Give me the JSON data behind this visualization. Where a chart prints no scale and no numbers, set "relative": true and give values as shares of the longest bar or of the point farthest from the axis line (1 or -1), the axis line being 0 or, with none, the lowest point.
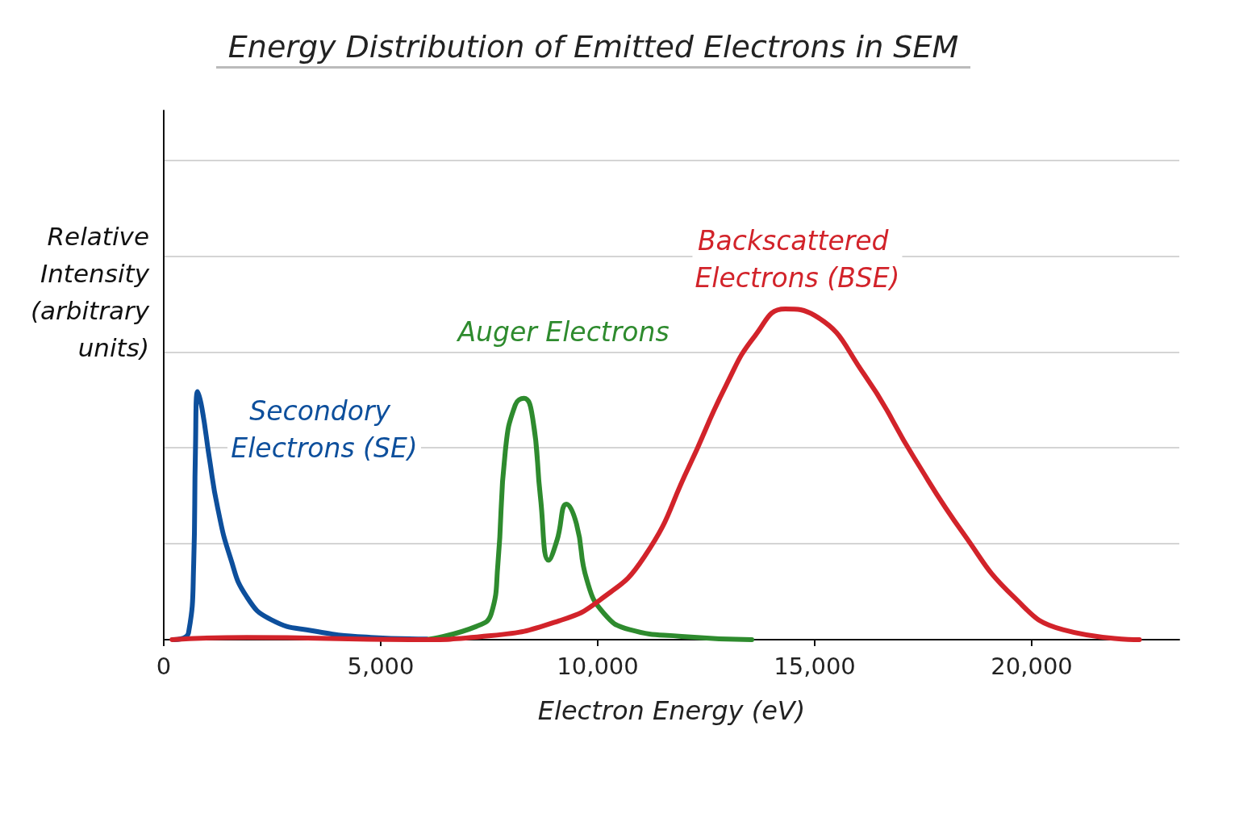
{
  "chart_data": {
    "type": "line",
    "title": "Energy Distribution of Emitted Electrons in SEM",
    "xlabel": "Electron Energy (eV)",
    "ylabel": "Relative Intensity (arbitrary units)",
    "relative": true,
    "grid": "y",
    "marker": "none",
    "line_style": "solid",
    "xlim": [
      0,
      23400
    ],
    "xticks": [
      0,
      {
        "value": 5000,
        "label": "5,000"
      },
      {
        "value": 10000,
        "label": "10,000"
      },
      {
        "value": 15000,
        "label": "15,000"
      },
      {
        "value": 20000,
        "label": "20,000"
      }
    ],
    "series": [
      {
        "name": "Secondory Electrons (SE)",
        "color": "#0d4f9c",
        "x": [
          240,
          570,
          690,
          730,
          780,
          880,
          1050,
          1240,
          1530,
          1910,
          2480,
          3430,
          4770,
          6060
        ],
        "values": [
          0,
          0.02,
          0.23,
          0.57,
          0.75,
          0.7,
          0.55,
          0.4,
          0.25,
          0.13,
          0.06,
          0.027,
          0.007,
          0.002
        ]
      },
      {
        "name": "Auger Electrons",
        "color": "#2e8b2e",
        "x": [
          6060,
          7200,
          7550,
          7700,
          7870,
          8100,
          8300,
          8500,
          8680,
          8870,
          9060,
          9280,
          9510,
          9750,
          10140,
          10740,
          11930,
          13550
        ],
        "values": [
          0,
          0.04,
          0.08,
          0.23,
          0.57,
          0.71,
          0.73,
          0.67,
          0.43,
          0.24,
          0.3,
          0.41,
          0.35,
          0.18,
          0.08,
          0.03,
          0.01,
          0
        ]
      },
      {
        "name": "Backscattered Electrons (BSE)",
        "color": "#d2232a",
        "x": [
          190,
          1910,
          5660,
          7540,
          9110,
          10050,
          11070,
          12090,
          12960,
          13630,
          14320,
          15000,
          16150,
          17290,
          18430,
          19580,
          20720,
          22480
        ],
        "values": [
          0,
          0.007,
          0,
          0.012,
          0.057,
          0.12,
          0.25,
          0.52,
          0.77,
          0.92,
          1,
          0.98,
          0.8,
          0.55,
          0.32,
          0.13,
          0.03,
          0
        ]
      }
    ]
  }
}
